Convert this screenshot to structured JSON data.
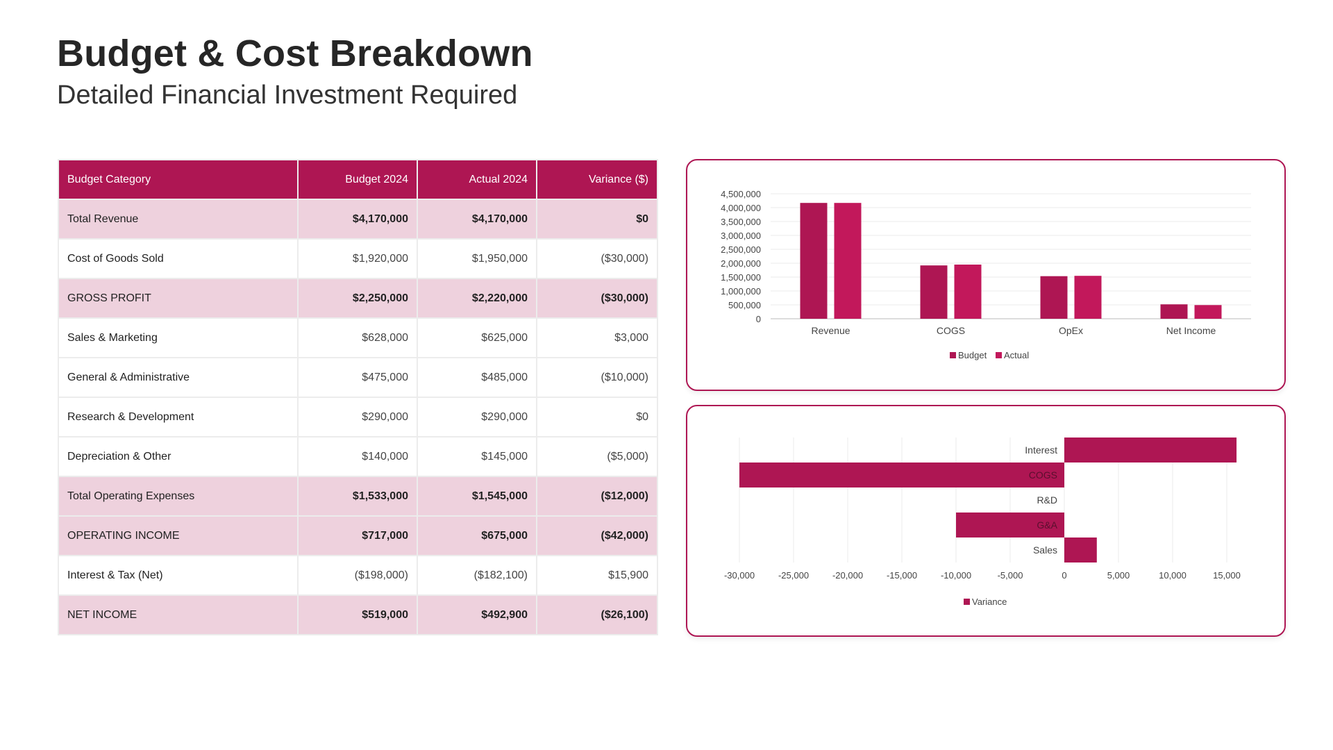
{
  "header": {
    "title": "Budget & Cost Breakdown",
    "subtitle": "Detailed Financial Investment Required"
  },
  "table": {
    "columns": [
      "Budget Category",
      "Budget 2024",
      "Actual 2024",
      "Variance ($)"
    ],
    "rows": [
      {
        "category": "Total Revenue",
        "budget": "$4,170,000",
        "actual": "$4,170,000",
        "variance": "$0",
        "style": "shade",
        "bold": true
      },
      {
        "category": "Cost of Goods Sold",
        "budget": "$1,920,000",
        "actual": "$1,950,000",
        "variance": "($30,000)",
        "style": "plain",
        "bold": false
      },
      {
        "category": "GROSS PROFIT",
        "budget": "$2,250,000",
        "actual": "$2,220,000",
        "variance": "($30,000)",
        "style": "shade",
        "bold": true
      },
      {
        "category": "Sales & Marketing",
        "budget": "$628,000",
        "actual": "$625,000",
        "variance": "$3,000",
        "style": "plain",
        "bold": false
      },
      {
        "category": "General & Administrative",
        "budget": "$475,000",
        "actual": "$485,000",
        "variance": "($10,000)",
        "style": "plain",
        "bold": false
      },
      {
        "category": "Research & Development",
        "budget": "$290,000",
        "actual": "$290,000",
        "variance": "$0",
        "style": "plain",
        "bold": false
      },
      {
        "category": "Depreciation & Other",
        "budget": "$140,000",
        "actual": "$145,000",
        "variance": "($5,000)",
        "style": "plain",
        "bold": false
      },
      {
        "category": "Total Operating Expenses",
        "budget": "$1,533,000",
        "actual": "$1,545,000",
        "variance": "($12,000)",
        "style": "shade",
        "bold": true
      },
      {
        "category": "OPERATING INCOME",
        "budget": "$717,000",
        "actual": "$675,000",
        "variance": "($42,000)",
        "style": "shade",
        "bold": true
      },
      {
        "category": "Interest & Tax (Net)",
        "budget": "($198,000)",
        "actual": "($182,100)",
        "variance": "$15,900",
        "style": "plain",
        "bold": false
      },
      {
        "category": "NET INCOME",
        "budget": "$519,000",
        "actual": "$492,900",
        "variance": "($26,100)",
        "style": "shade",
        "bold": true
      }
    ]
  },
  "colors": {
    "accent": "#AE1653",
    "budget": "#AE1653",
    "actual": "#C2185B",
    "row_shade": "#EED1DD",
    "grid": "#EBEBEB"
  },
  "chart_data": [
    {
      "type": "bar",
      "title": "",
      "categories": [
        "Revenue",
        "COGS",
        "OpEx",
        "Net Income"
      ],
      "series": [
        {
          "name": "Budget",
          "values": [
            4170000,
            1920000,
            1533000,
            519000
          ]
        },
        {
          "name": "Actual",
          "values": [
            4170000,
            1950000,
            1545000,
            492900
          ]
        }
      ],
      "yticks": [
        "0",
        "500,000",
        "1,000,000",
        "1,500,000",
        "2,000,000",
        "2,500,000",
        "3,000,000",
        "3,500,000",
        "4,000,000",
        "4,500,000"
      ],
      "ylim": [
        0,
        4500000
      ],
      "xlabel": "",
      "ylabel": "",
      "grid": true,
      "legend": "bottom"
    },
    {
      "type": "bar",
      "orientation": "horizontal",
      "title": "",
      "categories": [
        "Interest",
        "COGS",
        "R&D",
        "G&A",
        "Sales"
      ],
      "series": [
        {
          "name": "Variance",
          "values": [
            15900,
            -30000,
            0,
            -10000,
            3000
          ]
        }
      ],
      "xticks": [
        "-30,000",
        "-25,000",
        "-20,000",
        "-15,000",
        "-10,000",
        "-5,000",
        "0",
        "5,000",
        "10,000",
        "15,000"
      ],
      "xlim": [
        -30000,
        17500
      ],
      "xlabel": "",
      "ylabel": "",
      "grid": true,
      "legend": "bottom"
    }
  ]
}
